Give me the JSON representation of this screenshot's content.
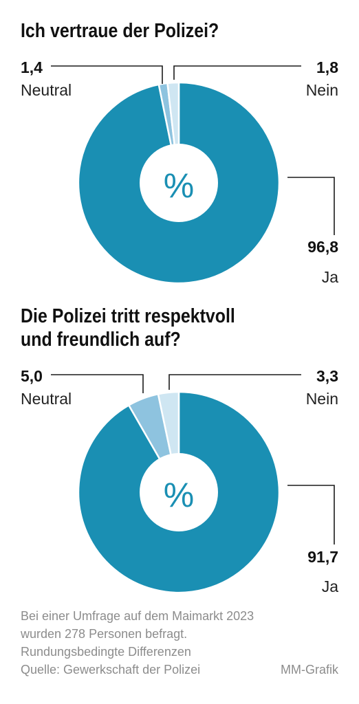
{
  "chart_data": [
    {
      "type": "pie",
      "title": "Ich vertraue der Polizei?",
      "center_label": "%",
      "categories": [
        "Ja",
        "Neutral",
        "Nein"
      ],
      "values": [
        96.8,
        1.4,
        1.8
      ],
      "value_labels": [
        "96,8",
        "1,4",
        "1,8"
      ],
      "colors": [
        "#1a8fb3",
        "#8ec3df",
        "#cfe6f2"
      ]
    },
    {
      "type": "pie",
      "title_lines": [
        "Die Polizei tritt respektvoll",
        "und freundlich auf?"
      ],
      "center_label": "%",
      "categories": [
        "Ja",
        "Neutral",
        "Nein"
      ],
      "values": [
        91.7,
        5.0,
        3.3
      ],
      "value_labels": [
        "91,7",
        "5,0",
        "3,3"
      ],
      "colors": [
        "#1a8fb3",
        "#8ec3df",
        "#cfe6f2"
      ]
    }
  ],
  "footer": {
    "line1": "Bei einer Umfrage auf dem Maimarkt 2023",
    "line2": "wurden 278 Personen befragt.",
    "line3": "Rundungsbedingte Differenzen",
    "source": "Quelle: Gewerkschaft der Polizei",
    "credit": "MM-Grafik"
  }
}
